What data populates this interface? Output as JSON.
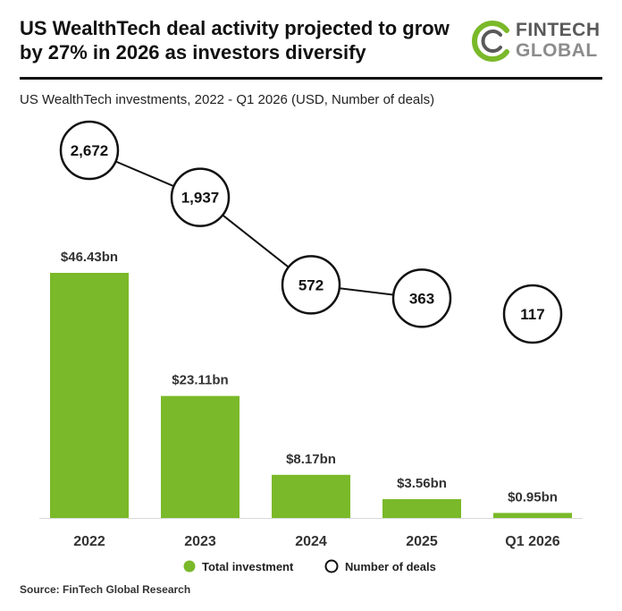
{
  "header": {
    "title": "US WealthTech deal activity projected to grow by 27% in 2026 as investors diversify",
    "logo": {
      "line1": "FINTECH",
      "line2": "GLOBAL",
      "accent_color": "#7ab929"
    }
  },
  "chart_data": {
    "type": "bar",
    "title": "US WealthTech investments, 2022 - Q1 2026 (USD, Number of deals)",
    "categories": [
      "2022",
      "2023",
      "2024",
      "2025",
      "Q1 2026"
    ],
    "series": [
      {
        "name": "Total investment",
        "kind": "bar",
        "unit": "USD bn",
        "values": [
          46.43,
          23.11,
          8.17,
          3.56,
          0.95
        ],
        "labels": [
          "$46.43bn",
          "$23.11bn",
          "$8.17bn",
          "$3.56bn",
          "$0.95bn"
        ],
        "color": "#7ab929"
      },
      {
        "name": "Number of deals",
        "kind": "line-circles",
        "values": [
          2672,
          1937,
          572,
          363,
          117
        ],
        "labels": [
          "2,672",
          "1,937",
          "572",
          "363",
          "117"
        ],
        "connected_through": 3,
        "color": "#111111"
      }
    ],
    "ylim": [
      0,
      46.43
    ],
    "deals_ylim": [
      117,
      2672
    ],
    "grid": false,
    "legend": "bottom-center"
  },
  "footer": {
    "source": "Source: FinTech Global Research"
  }
}
